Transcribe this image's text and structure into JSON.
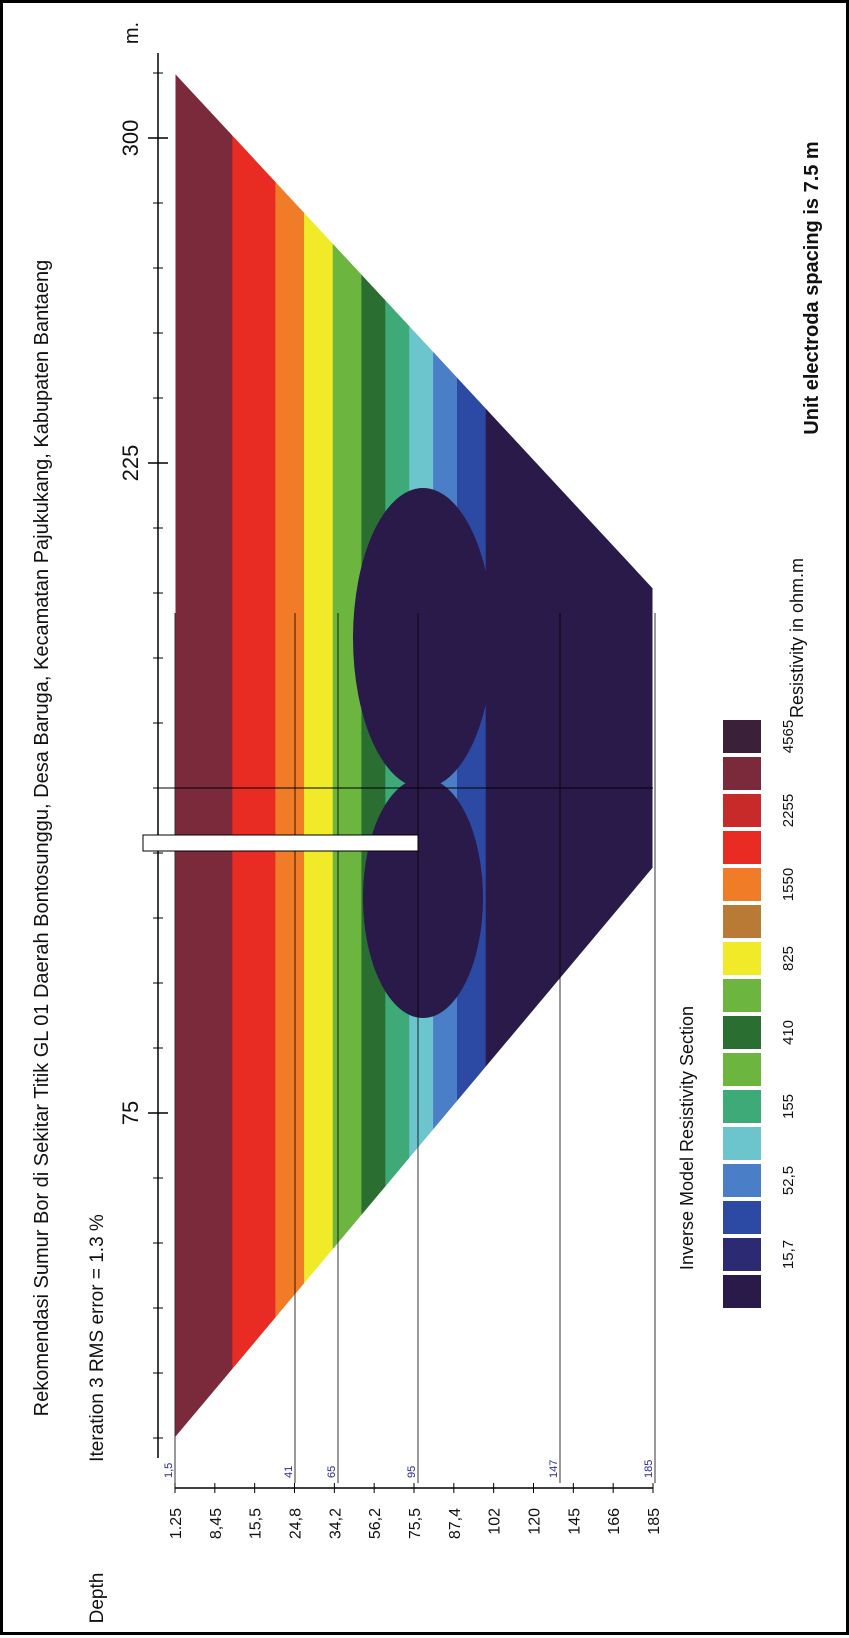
{
  "chart_data": {
    "type": "heatmap",
    "title": "Rekomendasi Sumur Bor di Sekitar Titik GL 01 Daerah Bontosunggu, Desa Baruga, Kecamatan Pajukukang, Kabupaten Bantaeng",
    "subtitle": "Iteration 3 RMS error = 1.3 %",
    "x_axis": {
      "unit": "m.",
      "ticks": [
        75,
        225,
        300
      ],
      "range": [
        0,
        315
      ]
    },
    "y_axis": {
      "label": "Depth",
      "ticks": [
        "1.25",
        "8,45",
        "15,5",
        "24,8",
        "34,2",
        "56,2",
        "75,5",
        "87,4",
        "102",
        "120",
        "145",
        "166",
        "185"
      ]
    },
    "depth_markers": [
      "1,5",
      "41",
      "65",
      "95",
      "147",
      "185"
    ],
    "legend": {
      "title": "Inverse Model Resistivity Section",
      "unit_label": "Resistivity in ohm.m",
      "colors": [
        "#2a1a4a",
        "#2c2a72",
        "#2c4aa4",
        "#4a7ec6",
        "#6cc4cc",
        "#3daa78",
        "#6cb640",
        "#2a6e32",
        "#6cb640",
        "#f0ea28",
        "#b87a34",
        "#f07c28",
        "#e82c24",
        "#c82a2a",
        "#7a2a3a",
        "#3a2038"
      ],
      "values": [
        "15,7",
        "52,5",
        "155",
        "410",
        "825",
        "1550",
        "2255",
        "4565"
      ]
    },
    "note": "Unit electroda spacing is 7.5 m",
    "grid": false
  }
}
